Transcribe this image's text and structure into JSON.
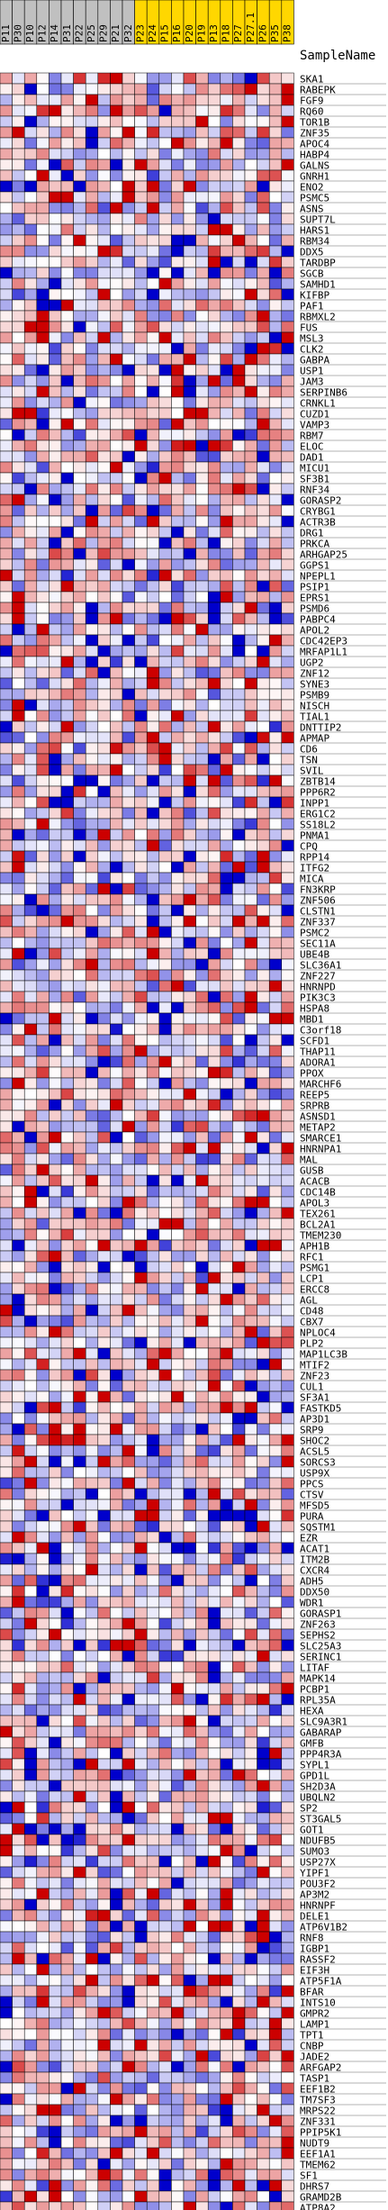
{
  "chart_data": {
    "type": "heatmap",
    "title": "",
    "row_header": "SampleName",
    "columns": [
      {
        "name": "P11",
        "group": "gray"
      },
      {
        "name": "P30",
        "group": "gray"
      },
      {
        "name": "P10",
        "group": "gray"
      },
      {
        "name": "P12",
        "group": "gray"
      },
      {
        "name": "P14",
        "group": "gray"
      },
      {
        "name": "P31",
        "group": "gray"
      },
      {
        "name": "P22",
        "group": "gray"
      },
      {
        "name": "P25",
        "group": "gray"
      },
      {
        "name": "P29",
        "group": "gray"
      },
      {
        "name": "P21",
        "group": "gray"
      },
      {
        "name": "P32",
        "group": "gray"
      },
      {
        "name": "P23",
        "group": "gold"
      },
      {
        "name": "P24",
        "group": "gold"
      },
      {
        "name": "P15",
        "group": "gold"
      },
      {
        "name": "P16",
        "group": "gold"
      },
      {
        "name": "P20",
        "group": "gold"
      },
      {
        "name": "P19",
        "group": "gold"
      },
      {
        "name": "P13",
        "group": "gold"
      },
      {
        "name": "P18",
        "group": "gold"
      },
      {
        "name": "P27",
        "group": "gold"
      },
      {
        "name": "P27.1",
        "group": "gold"
      },
      {
        "name": "P26",
        "group": "gold"
      },
      {
        "name": "P35",
        "group": "gold"
      },
      {
        "name": "P38",
        "group": "gold"
      }
    ],
    "group_colors": {
      "gray": "#c0c0c0",
      "gold": "#ffd700"
    },
    "rows": [
      "SKA1",
      "RABEPK",
      "FGF9",
      "RQ60",
      "TOR1B",
      "ZNF35",
      "APOC4",
      "HABP4",
      "GALNS",
      "GNRH1",
      "ENO2",
      "PSMC5",
      "ASNS",
      "SUPT7L",
      "HARS1",
      "RBM34",
      "DDX5",
      "TARDBP",
      "SGCB",
      "SAMHD1",
      "KIFBP",
      "PAF1",
      "RBMXL2",
      "FUS",
      "MSL3",
      "CLK2",
      "GABPA",
      "USP1",
      "JAM3",
      "SERPINB6",
      "CRNKL1",
      "CUZD1",
      "VAMP3",
      "RBM7",
      "ELOC",
      "DAD1",
      "MICU1",
      "SF3B1",
      "RNF34",
      "GORASP2",
      "CRYBG1",
      "ACTR3B",
      "DRG1",
      "PRKCA",
      "ARHGAP25",
      "GGPS1",
      "NPEPL1",
      "PSIP1",
      "EPRS1",
      "PSMD6",
      "PABPC4",
      "APOL2",
      "CDC42EP3",
      "MRFAP1L1",
      "UGP2",
      "ZNF12",
      "SYNE3",
      "PSMB9",
      "NISCH",
      "TIAL1",
      "DNTTIP2",
      "APMAP",
      "CD6",
      "TSN",
      "SVIL",
      "ZBTB14",
      "PPP6R2",
      "INPP1",
      "ERG1C2",
      "SS18L2",
      "PNMA1",
      "CPQ",
      "RPP14",
      "ITFG2",
      "MICA",
      "FN3KRP",
      "ZNF506",
      "CLSTN1",
      "ZNF337",
      "PSMC2",
      "SEC11A",
      "UBE4B",
      "SLC36A1",
      "ZNF227",
      "HNRNPD",
      "PIK3C3",
      "HSPA8",
      "MBD1",
      "C3orf18",
      "SCFD1",
      "THAP11",
      "ADORA1",
      "PPOX",
      "MARCHF6",
      "REEP5",
      "SRPRB",
      "ASNSD1",
      "METAP2",
      "SMARCE1",
      "HNRNPA1",
      "MAL",
      "GUSB",
      "ACACB",
      "CDC14B",
      "APOL3",
      "TEX261",
      "BCL2A1",
      "TMEM230",
      "APH1B",
      "RFC1",
      "PSMG1",
      "LCP1",
      "ERCC8",
      "AGL",
      "CD48",
      "CBX7",
      "NPLOC4",
      "PLP2",
      "MAP1LC3B",
      "MTIF2",
      "ZNF23",
      "CUL1",
      "SF3A1",
      "FASTKD5",
      "AP3D1",
      "SRP9",
      "SHOC2",
      "ACSL5",
      "SORCS3",
      "USP9X",
      "PPCS",
      "CTSV",
      "MFSD5",
      "PURA",
      "SQSTM1",
      "EZR",
      "ACAT1",
      "ITM2B",
      "CXCR4",
      "ADH5",
      "DDX50",
      "WDR1",
      "GORASP1",
      "ZNF263",
      "SEPHS2",
      "SLC25A3",
      "SERINC1",
      "LITAF",
      "MAPK14",
      "PCBP1",
      "RPL35A",
      "HEXA",
      "SLC9A3R1",
      "GABARAP",
      "GMFB",
      "PPP4R3A",
      "SYPL1",
      "GPD1L",
      "SH2D3A",
      "UBQLN2",
      "SP2",
      "ST3GAL5",
      "GOT1",
      "NDUFB5",
      "SUMO3",
      "USP27X",
      "YIPF1",
      "POU3F2",
      "AP3M2",
      "HNRNPF",
      "DELE1",
      "ATP6V1B2",
      "RNF8",
      "IGBP1",
      "RASSF2",
      "EIF3H",
      "ATP5F1A",
      "BFAR",
      "INTS10",
      "GMPR2",
      "LAMP1",
      "TPT1",
      "CNBP",
      "JADE2",
      "ARFGAP2",
      "TASP1",
      "EEF1B2",
      "TM7SF3",
      "MRPS22",
      "ZNF331",
      "PPIP5K1",
      "NUDT9",
      "EEF1A1",
      "TMEM62",
      "SF1",
      "DHRS7",
      "GRAMD2B",
      "ATP8A2"
    ],
    "value_range": [
      -1,
      1
    ],
    "color_scale": [
      "#0000cc",
      "#ffffff",
      "#cc0000"
    ],
    "seed": 911
  }
}
